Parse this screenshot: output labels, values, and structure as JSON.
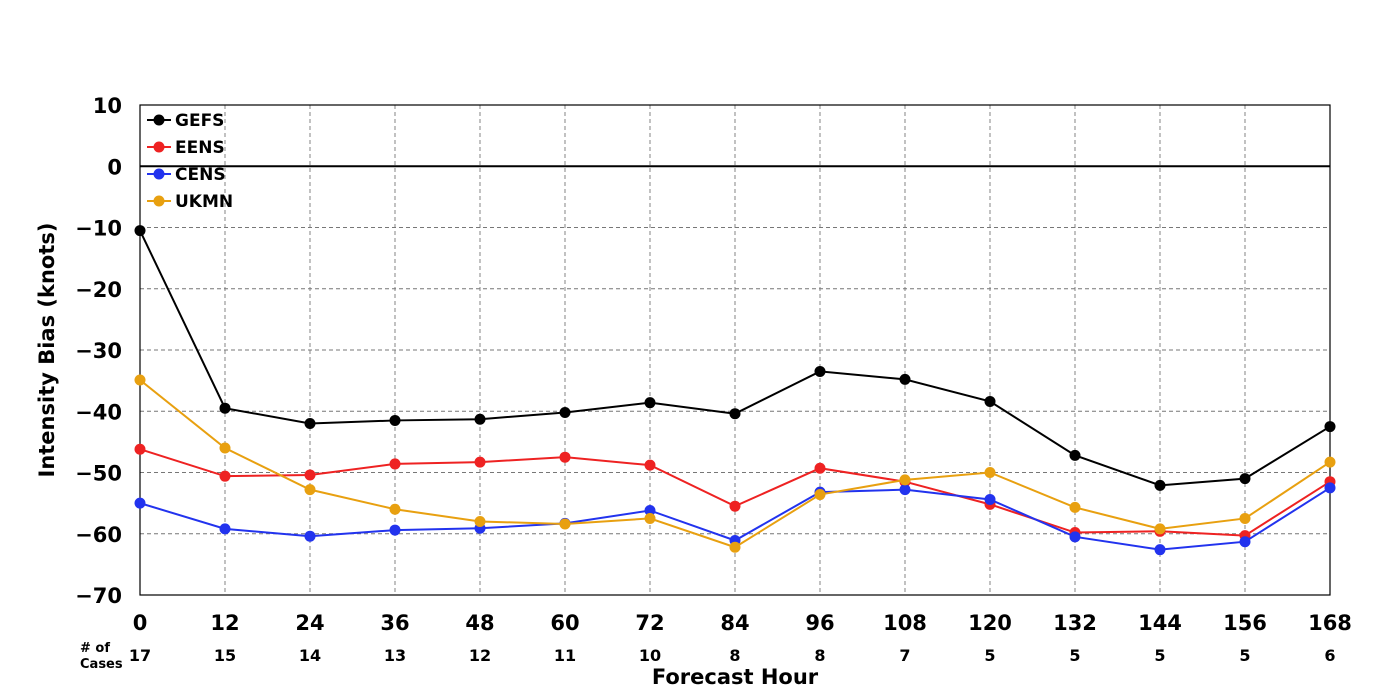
{
  "chart_data": {
    "type": "line",
    "xlabel": "Forecast Hour",
    "ylabel": "Intensity Bias (knots)",
    "x": [
      0,
      12,
      24,
      36,
      48,
      60,
      72,
      84,
      96,
      108,
      120,
      132,
      144,
      156,
      168
    ],
    "x_ticks": [
      "0",
      "12",
      "24",
      "36",
      "48",
      "60",
      "72",
      "84",
      "96",
      "108",
      "120",
      "132",
      "144",
      "156",
      "168"
    ],
    "y_ticks": [
      "10",
      "0",
      "−10",
      "−20",
      "−30",
      "−40",
      "−50",
      "−60",
      "−70"
    ],
    "xlim": [
      0,
      168
    ],
    "ylim": [
      -70,
      10
    ],
    "grid": true,
    "zero_line": true,
    "legend_placement": "top-left",
    "cases_label_line1": "# of",
    "cases_label_line2": "Cases",
    "cases": [
      "17",
      "15",
      "14",
      "13",
      "12",
      "11",
      "10",
      "8",
      "8",
      "7",
      "5",
      "5",
      "5",
      "5",
      "6"
    ],
    "series": [
      {
        "name": "GEFS",
        "color": "#000000",
        "values": [
          -10.5,
          -39.5,
          -42.0,
          -41.5,
          -41.3,
          -40.2,
          -38.6,
          -40.4,
          -33.5,
          -34.8,
          -38.4,
          -47.2,
          -52.1,
          -51.0,
          -42.5
        ]
      },
      {
        "name": "EENS",
        "color": "#ee2222",
        "values": [
          -46.2,
          -50.6,
          -50.4,
          -48.6,
          -48.3,
          -47.5,
          -48.8,
          -55.5,
          -49.3,
          -51.5,
          -55.2,
          -59.8,
          -59.6,
          -60.3,
          -51.5
        ]
      },
      {
        "name": "CENS",
        "color": "#2233ee",
        "values": [
          -55.0,
          -59.2,
          -60.4,
          -59.4,
          -59.1,
          -58.3,
          -56.2,
          -61.1,
          -53.2,
          -52.8,
          -54.4,
          -60.5,
          -62.6,
          -61.3,
          -52.5
        ]
      },
      {
        "name": "UKMN",
        "color": "#e8a010",
        "values": [
          -34.9,
          -46.0,
          -52.8,
          -56.0,
          -58.0,
          -58.4,
          -57.5,
          -62.2,
          -53.6,
          -51.2,
          -50.0,
          -55.7,
          -59.2,
          -57.5,
          -48.3
        ]
      }
    ]
  }
}
